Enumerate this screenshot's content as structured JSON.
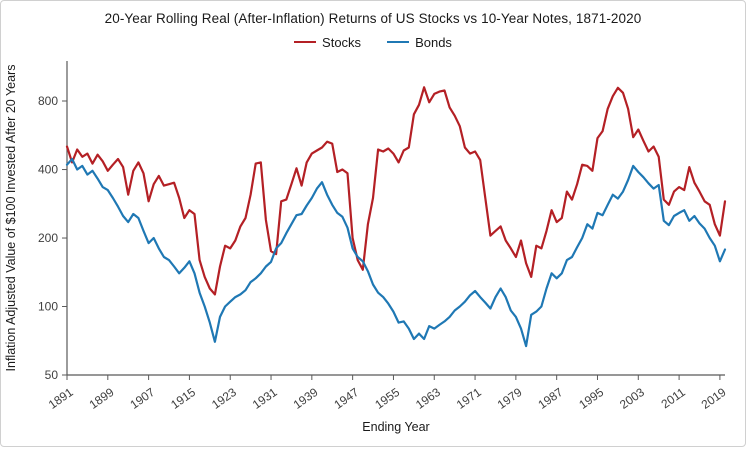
{
  "chart_data": {
    "type": "line",
    "title": "20-Year Rolling Real (After-Inflation) Returns of US Stocks vs 10-Year Notes, 1871-2020",
    "xlabel": "Ending Year",
    "ylabel": "Inflation Adjusted Value of $100 Invested After 20 Years",
    "y_scale": "log",
    "ylim": [
      50,
      1200
    ],
    "yticks": [
      50,
      100,
      200,
      400,
      800
    ],
    "xticks": [
      1891,
      1899,
      1907,
      1915,
      1923,
      1931,
      1939,
      1947,
      1955,
      1963,
      1971,
      1979,
      1987,
      1995,
      2003,
      2011,
      2019
    ],
    "x_start": 1891,
    "x_end": 2020,
    "grid": false,
    "legend_position": "top-center",
    "axis_color": "#595959",
    "tick_label_color": "#404040",
    "series": [
      {
        "name": "Stocks",
        "color": "#b42025",
        "values": [
          505,
          430,
          490,
          455,
          470,
          425,
          465,
          435,
          395,
          420,
          445,
          410,
          310,
          395,
          430,
          385,
          290,
          345,
          375,
          340,
          345,
          350,
          300,
          245,
          265,
          255,
          160,
          135,
          120,
          113,
          150,
          185,
          180,
          195,
          225,
          245,
          310,
          425,
          430,
          240,
          175,
          170,
          290,
          295,
          345,
          405,
          340,
          430,
          470,
          485,
          500,
          530,
          520,
          390,
          400,
          385,
          200,
          160,
          145,
          230,
          300,
          490,
          480,
          495,
          470,
          430,
          485,
          500,
          700,
          770,
          920,
          790,
          860,
          880,
          890,
          750,
          690,
          620,
          500,
          470,
          480,
          440,
          300,
          205,
          215,
          225,
          195,
          180,
          165,
          195,
          155,
          135,
          185,
          180,
          215,
          265,
          235,
          245,
          320,
          295,
          345,
          420,
          415,
          395,
          550,
          590,
          740,
          840,
          915,
          870,
          740,
          555,
          600,
          535,
          480,
          505,
          455,
          295,
          280,
          320,
          335,
          325,
          410,
          350,
          320,
          290,
          280,
          230,
          205,
          290
        ]
      },
      {
        "name": "Bonds",
        "color": "#1f78b4",
        "values": [
          420,
          445,
          400,
          415,
          380,
          395,
          365,
          335,
          325,
          300,
          275,
          250,
          235,
          255,
          245,
          215,
          190,
          200,
          180,
          165,
          160,
          150,
          140,
          148,
          158,
          140,
          115,
          100,
          85,
          70,
          90,
          100,
          105,
          110,
          113,
          118,
          128,
          133,
          140,
          150,
          157,
          180,
          190,
          210,
          230,
          252,
          255,
          278,
          300,
          330,
          352,
          310,
          280,
          258,
          248,
          222,
          180,
          165,
          158,
          143,
          125,
          115,
          110,
          103,
          95,
          85,
          86,
          80,
          72,
          76,
          72,
          82,
          80,
          83,
          86,
          90,
          96,
          100,
          105,
          112,
          117,
          110,
          104,
          98,
          110,
          120,
          110,
          96,
          90,
          80,
          67,
          92,
          95,
          100,
          120,
          140,
          133,
          140,
          160,
          165,
          182,
          200,
          230,
          220,
          258,
          252,
          280,
          310,
          298,
          320,
          360,
          415,
          390,
          370,
          348,
          330,
          342,
          238,
          228,
          250,
          258,
          265,
          238,
          250,
          232,
          220,
          200,
          185,
          158,
          178
        ]
      }
    ]
  }
}
